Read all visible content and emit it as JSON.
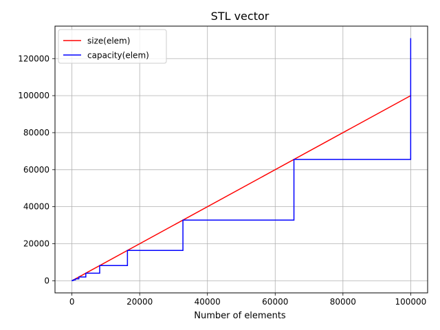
{
  "chart_data": {
    "type": "line",
    "title": "STL vector",
    "xlabel": "Number of elements",
    "ylabel": "",
    "xlim": [
      -5000,
      105000
    ],
    "ylim": [
      -6550,
      137550
    ],
    "xticks": [
      0,
      20000,
      40000,
      60000,
      80000,
      100000
    ],
    "yticks": [
      0,
      20000,
      40000,
      60000,
      80000,
      100000,
      120000
    ],
    "grid": true,
    "legend_position": "top-left",
    "series": [
      {
        "name": "size(elem)",
        "color": "#ff0000",
        "kind": "line",
        "x": [
          0,
          100000
        ],
        "y": [
          0,
          100000
        ]
      },
      {
        "name": "capacity(elem)",
        "color": "#0000ff",
        "kind": "step",
        "x": [
          0,
          1,
          2,
          4,
          8,
          16,
          32,
          64,
          128,
          256,
          512,
          1024,
          2048,
          4096,
          8192,
          16384,
          32768,
          65536,
          100000
        ],
        "y": [
          1,
          1,
          2,
          4,
          8,
          16,
          32,
          64,
          128,
          256,
          512,
          1024,
          2048,
          4096,
          8192,
          16384,
          32768,
          65536,
          131072
        ]
      }
    ]
  }
}
